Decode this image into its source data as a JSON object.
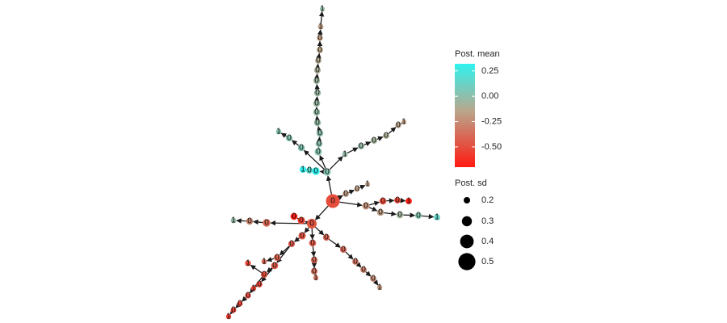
{
  "graph": {
    "color_scale": {
      "min": -0.7,
      "max": 0.32,
      "low": "#ff1a10",
      "mid": "#b8a88e",
      "high": "#2ff2ee"
    },
    "edge_color": "#1a1a1a",
    "root": "r",
    "nodes": [
      {
        "id": "r",
        "label": "0",
        "mean": -0.45,
        "sd": 0.45
      },
      {
        "id": "u1",
        "label": "0",
        "mean": 0.32,
        "sd": 0.28
      },
      {
        "id": "u2",
        "label": "0",
        "mean": 0.22,
        "sd": 0.25
      },
      {
        "id": "u3",
        "label": "1",
        "mean": 0.32,
        "sd": 0.25
      },
      {
        "id": "h",
        "label": "0",
        "mean": 0.12,
        "sd": 0.27
      },
      {
        "id": "t1",
        "label": "0",
        "mean": 0.12,
        "sd": 0.27
      },
      {
        "id": "t2",
        "label": "0",
        "mean": 0.1,
        "sd": 0.26
      },
      {
        "id": "t3",
        "label": "0",
        "mean": 0.1,
        "sd": 0.26
      },
      {
        "id": "t4",
        "label": "0",
        "mean": 0.08,
        "sd": 0.26
      },
      {
        "id": "t5",
        "label": "0",
        "mean": 0.08,
        "sd": 0.26
      },
      {
        "id": "t6",
        "label": "0",
        "mean": 0.07,
        "sd": 0.26
      },
      {
        "id": "t7",
        "label": "0",
        "mean": 0.07,
        "sd": 0.26
      },
      {
        "id": "t8",
        "label": "0",
        "mean": 0.06,
        "sd": 0.25
      },
      {
        "id": "t9",
        "label": "0",
        "mean": 0.03,
        "sd": 0.25
      },
      {
        "id": "t10",
        "label": "0",
        "mean": 0.01,
        "sd": 0.24
      },
      {
        "id": "t11",
        "label": "0",
        "mean": -0.02,
        "sd": 0.24
      },
      {
        "id": "t12",
        "label": "0",
        "mean": -0.06,
        "sd": 0.23
      },
      {
        "id": "t13",
        "label": "1",
        "mean": -0.05,
        "sd": 0.22
      },
      {
        "id": "t14",
        "label": "1",
        "mean": 0.08,
        "sd": 0.2
      },
      {
        "id": "l1",
        "label": "0",
        "mean": 0.12,
        "sd": 0.26
      },
      {
        "id": "l2",
        "label": "0",
        "mean": 0.12,
        "sd": 0.25
      },
      {
        "id": "l3",
        "label": "1",
        "mean": 0.12,
        "sd": 0.22
      },
      {
        "id": "rb1",
        "label": "1",
        "mean": 0.08,
        "sd": 0.22
      },
      {
        "id": "rb2",
        "label": "0",
        "mean": 0.08,
        "sd": 0.25
      },
      {
        "id": "rb3",
        "label": "0",
        "mean": 0.05,
        "sd": 0.25
      },
      {
        "id": "rb4",
        "label": "0",
        "mean": 0.02,
        "sd": 0.24
      },
      {
        "id": "rb5",
        "label": "0",
        "mean": -0.02,
        "sd": 0.23
      },
      {
        "id": "rb6",
        "label": "1",
        "mean": -0.08,
        "sd": 0.2
      },
      {
        "id": "s1",
        "label": "0",
        "mean": -0.05,
        "sd": 0.24
      },
      {
        "id": "s2",
        "label": "0",
        "mean": -0.05,
        "sd": 0.22
      },
      {
        "id": "s3",
        "label": "1",
        "mean": -0.05,
        "sd": 0.2
      },
      {
        "id": "e1",
        "label": "0",
        "mean": -0.12,
        "sd": 0.27
      },
      {
        "id": "e2",
        "label": "0",
        "mean": -0.45,
        "sd": 0.26
      },
      {
        "id": "e3",
        "label": "0",
        "mean": -0.52,
        "sd": 0.24
      },
      {
        "id": "e4",
        "label": "1",
        "mean": -0.7,
        "sd": 0.24
      },
      {
        "id": "e5",
        "label": "0",
        "mean": -0.05,
        "sd": 0.26
      },
      {
        "id": "e6",
        "label": "0",
        "mean": 0.05,
        "sd": 0.26
      },
      {
        "id": "e7",
        "label": "0",
        "mean": 0.12,
        "sd": 0.25
      },
      {
        "id": "e8",
        "label": "1",
        "mean": 0.2,
        "sd": 0.24
      },
      {
        "id": "c",
        "label": "0",
        "mean": -0.42,
        "sd": 0.34
      },
      {
        "id": "g1",
        "label": "0",
        "mean": -0.52,
        "sd": 0.27
      },
      {
        "id": "g2",
        "label": "0",
        "mean": -0.7,
        "sd": 0.26
      },
      {
        "id": "w1",
        "label": "0",
        "mean": -0.32,
        "sd": 0.28
      },
      {
        "id": "w2",
        "label": "0",
        "mean": -0.18,
        "sd": 0.26
      },
      {
        "id": "w3",
        "label": "1",
        "mean": 0.08,
        "sd": 0.22
      },
      {
        "id": "d1",
        "label": "0",
        "mean": -0.42,
        "sd": 0.27
      },
      {
        "id": "d2",
        "label": "0",
        "mean": -0.38,
        "sd": 0.25
      },
      {
        "id": "d3",
        "label": "0",
        "mean": -0.35,
        "sd": 0.25
      },
      {
        "id": "d4",
        "label": "1",
        "mean": -0.32,
        "sd": 0.21
      },
      {
        "id": "d5",
        "label": "0",
        "mean": -0.4,
        "sd": 0.26
      },
      {
        "id": "d6",
        "label": "0",
        "mean": -0.45,
        "sd": 0.25
      },
      {
        "id": "d7",
        "label": "1",
        "mean": -0.48,
        "sd": 0.23
      },
      {
        "id": "d8",
        "label": "0",
        "mean": -0.48,
        "sd": 0.24
      },
      {
        "id": "d9",
        "label": "1",
        "mean": -0.5,
        "sd": 0.21
      },
      {
        "id": "d10",
        "label": "0",
        "mean": -0.45,
        "sd": 0.23
      },
      {
        "id": "d11",
        "label": "0",
        "mean": -0.5,
        "sd": 0.22
      },
      {
        "id": "d12",
        "label": "0",
        "mean": -0.52,
        "sd": 0.22
      },
      {
        "id": "d13",
        "label": "1",
        "mean": -0.55,
        "sd": 0.21
      },
      {
        "id": "v1",
        "label": "0",
        "mean": -0.38,
        "sd": 0.26
      },
      {
        "id": "v2",
        "label": "0",
        "mean": -0.32,
        "sd": 0.25
      },
      {
        "id": "v3",
        "label": "0",
        "mean": -0.28,
        "sd": 0.25
      },
      {
        "id": "v4",
        "label": "1",
        "mean": -0.25,
        "sd": 0.21
      },
      {
        "id": "x1",
        "label": "0",
        "mean": -0.35,
        "sd": 0.25
      },
      {
        "id": "x2",
        "label": "0",
        "mean": -0.3,
        "sd": 0.25
      },
      {
        "id": "x3",
        "label": "0",
        "mean": -0.25,
        "sd": 0.24
      },
      {
        "id": "x4",
        "label": "0",
        "mean": -0.2,
        "sd": 0.24
      },
      {
        "id": "x5",
        "label": "0",
        "mean": -0.15,
        "sd": 0.24
      },
      {
        "id": "x6",
        "label": "1",
        "mean": -0.1,
        "sd": 0.21
      }
    ],
    "edges": [
      [
        "r",
        "h"
      ],
      [
        "h",
        "u1"
      ],
      [
        "u1",
        "u2"
      ],
      [
        "u2",
        "u3"
      ],
      [
        "h",
        "t1"
      ],
      [
        "t1",
        "t2"
      ],
      [
        "t2",
        "t3"
      ],
      [
        "t3",
        "t4"
      ],
      [
        "t4",
        "t5"
      ],
      [
        "t5",
        "t6"
      ],
      [
        "t6",
        "t7"
      ],
      [
        "t7",
        "t8"
      ],
      [
        "t8",
        "t9"
      ],
      [
        "t9",
        "t10"
      ],
      [
        "t10",
        "t11"
      ],
      [
        "t11",
        "t12"
      ],
      [
        "t12",
        "t13"
      ],
      [
        "t13",
        "t14"
      ],
      [
        "h",
        "l1"
      ],
      [
        "l1",
        "l2"
      ],
      [
        "l2",
        "l3"
      ],
      [
        "h",
        "rb1"
      ],
      [
        "rb1",
        "rb2"
      ],
      [
        "rb2",
        "rb3"
      ],
      [
        "rb3",
        "rb4"
      ],
      [
        "rb4",
        "rb5"
      ],
      [
        "rb5",
        "rb6"
      ],
      [
        "r",
        "s1"
      ],
      [
        "s1",
        "s2"
      ],
      [
        "s2",
        "s3"
      ],
      [
        "r",
        "e1"
      ],
      [
        "e1",
        "e2"
      ],
      [
        "e2",
        "e3"
      ],
      [
        "e3",
        "e4"
      ],
      [
        "e1",
        "e5"
      ],
      [
        "e5",
        "e6"
      ],
      [
        "e6",
        "e7"
      ],
      [
        "e7",
        "e8"
      ],
      [
        "r",
        "c"
      ],
      [
        "c",
        "g1"
      ],
      [
        "g1",
        "g2"
      ],
      [
        "c",
        "w1"
      ],
      [
        "w1",
        "w2"
      ],
      [
        "w2",
        "w3"
      ],
      [
        "c",
        "d1"
      ],
      [
        "d1",
        "d2"
      ],
      [
        "d2",
        "d3"
      ],
      [
        "d3",
        "d4"
      ],
      [
        "d2",
        "d5"
      ],
      [
        "d5",
        "d6"
      ],
      [
        "d6",
        "d7"
      ],
      [
        "d5",
        "d8"
      ],
      [
        "d8",
        "d9"
      ],
      [
        "d6",
        "d10"
      ],
      [
        "d10",
        "d11"
      ],
      [
        "d11",
        "d12"
      ],
      [
        "d12",
        "d13"
      ],
      [
        "c",
        "v1"
      ],
      [
        "v1",
        "v2"
      ],
      [
        "v2",
        "v3"
      ],
      [
        "v3",
        "v4"
      ],
      [
        "c",
        "x1"
      ],
      [
        "x1",
        "x2"
      ],
      [
        "x2",
        "x3"
      ],
      [
        "x3",
        "x4"
      ],
      [
        "x4",
        "x5"
      ],
      [
        "x5",
        "x6"
      ]
    ]
  },
  "legend": {
    "mean_title": "Post. mean",
    "mean_ticks": [
      {
        "value": 0.25,
        "label": "0.25"
      },
      {
        "value": 0.0,
        "label": "0.00"
      },
      {
        "value": -0.25,
        "label": "-0.25"
      },
      {
        "value": -0.5,
        "label": "-0.50"
      }
    ],
    "sd_title": "Post. sd",
    "sd_entries": [
      {
        "value": 0.2,
        "label": "0.2"
      },
      {
        "value": 0.3,
        "label": "0.3"
      },
      {
        "value": 0.4,
        "label": "0.4"
      },
      {
        "value": 0.5,
        "label": "0.5"
      }
    ]
  }
}
